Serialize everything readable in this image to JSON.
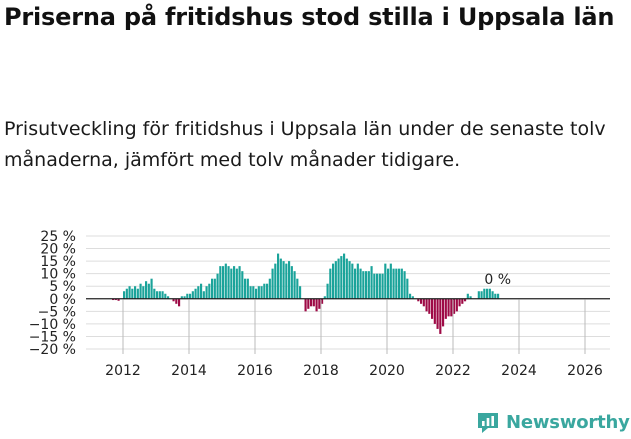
{
  "header": {
    "title": "Priserna på fritidshus stod stilla i Uppsala län",
    "subtitle": "Prisutveckling för fritidshus i Uppsala län under de senaste tolv månaderna, jämfört med tolv månader tidigare."
  },
  "brand": {
    "name": "Newsworthy"
  },
  "colors": {
    "positive": "#1aa39a",
    "negative": "#9e0a46",
    "zero_line": "#222222",
    "grid": "#dddddd"
  },
  "chart_data": {
    "type": "bar",
    "title": "Prisutveckling för fritidshus i Uppsala län",
    "xlabel": "",
    "ylabel": "",
    "ylim": [
      -20,
      25
    ],
    "yticks": [
      25,
      20,
      15,
      10,
      5,
      0,
      -5,
      -10,
      -15,
      -20
    ],
    "ytick_labels": [
      "25 %",
      "20 %",
      "15 %",
      "10 %",
      "5 %",
      "0 %",
      "−5 %",
      "−10 %",
      "−15 %",
      "−20 %"
    ],
    "xticks": [
      "2012",
      "2014",
      "2016",
      "2018",
      "2020",
      "2022",
      "2024",
      "2026"
    ],
    "start": "2011-01",
    "frequency": "monthly",
    "annotation": {
      "label": "0 %",
      "value": 0
    },
    "values": [
      0,
      0,
      0,
      0,
      0,
      0,
      0,
      0,
      -0.5,
      -0.5,
      -0.8,
      0,
      3,
      4,
      5,
      4,
      5,
      4,
      6,
      5,
      7,
      6,
      8,
      4,
      3,
      3,
      3,
      2,
      1,
      0,
      -1,
      -2,
      -3,
      1,
      1,
      2,
      2,
      3,
      4,
      5,
      6,
      3,
      5,
      6,
      8,
      8,
      10,
      13,
      13,
      14,
      13,
      12,
      13,
      12,
      13,
      11,
      8,
      8,
      5,
      5,
      4,
      5,
      5,
      6,
      6,
      8,
      12,
      14,
      18,
      16,
      15,
      14,
      15,
      13,
      11,
      8,
      5,
      0,
      -5,
      -4,
      -3,
      -3,
      -5,
      -4,
      -2,
      1,
      6,
      12,
      14,
      15,
      16,
      17,
      18,
      16,
      15,
      14,
      12,
      14,
      12,
      11,
      11,
      11,
      13,
      10,
      10,
      10,
      10,
      14,
      12,
      14,
      12,
      12,
      12,
      12,
      11,
      8,
      2,
      1,
      0,
      -1,
      -2,
      -3,
      -5,
      -6,
      -8,
      -10,
      -12,
      -14,
      -11,
      -8,
      -7,
      -7,
      -6,
      -5,
      -3,
      -2,
      -1,
      2,
      1,
      0,
      0,
      3,
      3,
      4,
      4,
      4,
      3,
      2,
      2,
      0
    ]
  }
}
